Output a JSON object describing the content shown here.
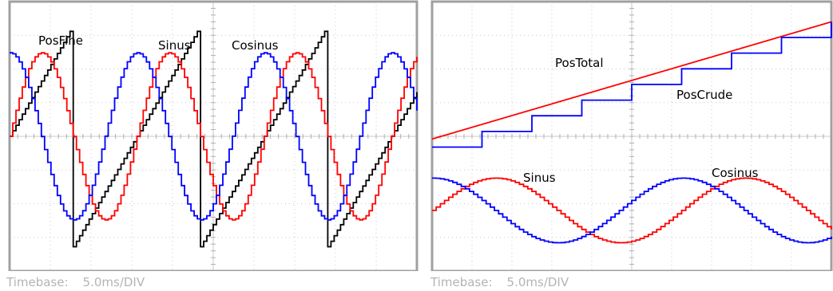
{
  "chart_data": [
    {
      "type": "line",
      "title": "",
      "timebase_label": "Timebase:",
      "timebase_value": "5.0ms/DIV",
      "x_divisions": 10,
      "y_divisions": 8,
      "grid": true,
      "ylim": [
        -1,
        1
      ],
      "series": [
        {
          "name": "PosFine",
          "color": "#000000",
          "waveform": "sawtooth",
          "amplitude": 0.82,
          "cycles": 3.2,
          "phase": 0.0,
          "steps": 40
        },
        {
          "name": "Sinus",
          "color": "#ff0000",
          "waveform": "sine",
          "amplitude": 0.62,
          "cycles": 3.2,
          "phase": 0.0,
          "steps": 40
        },
        {
          "name": "Cosinus",
          "color": "#0000ff",
          "waveform": "cosine",
          "amplitude": 0.62,
          "cycles": 3.2,
          "phase": 0.0,
          "steps": 40
        }
      ]
    },
    {
      "type": "line",
      "title": "",
      "timebase_label": "Timebase:",
      "timebase_value": "5.0ms/DIV",
      "x_divisions": 10,
      "y_divisions": 8,
      "grid": true,
      "ylim": [
        -1,
        1
      ],
      "series": [
        {
          "name": "PosTotal",
          "color": "#ff0000",
          "waveform": "ramp",
          "from": -0.02,
          "to": 0.85
        },
        {
          "name": "PosCrude",
          "color": "#0000ff",
          "waveform": "staircase",
          "from": -0.08,
          "to": 0.85,
          "steps": 8
        },
        {
          "name": "Sinus",
          "color": "#ff0000",
          "waveform": "sine",
          "amplitude": 0.24,
          "offset": -0.55,
          "cycles": 1.6,
          "steps": 60
        },
        {
          "name": "Cosinus",
          "color": "#0000ff",
          "waveform": "cosine",
          "amplitude": 0.24,
          "offset": -0.55,
          "cycles": 1.6,
          "steps": 60
        }
      ]
    }
  ]
}
